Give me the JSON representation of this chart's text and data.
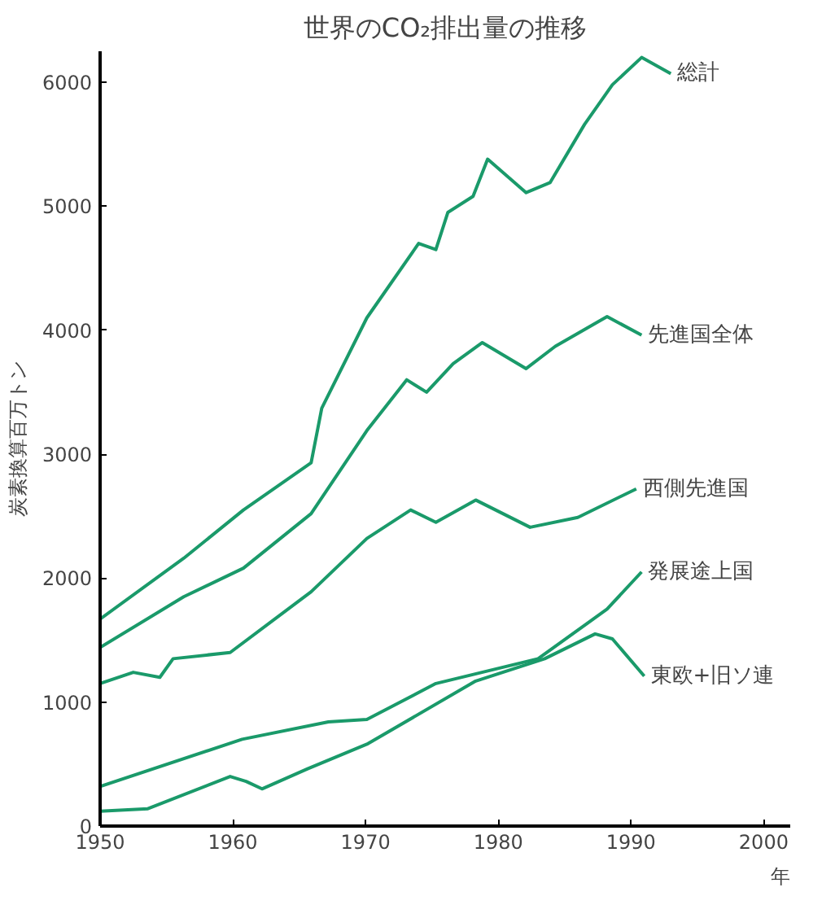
{
  "chart_data": {
    "type": "line",
    "title": "世界のCO₂排出量の推移",
    "xlabel": "年",
    "ylabel": "炭素換算百万トン",
    "xlim": [
      1950,
      2002
    ],
    "ylim": [
      0,
      6250
    ],
    "xticks": [
      1950,
      1960,
      1970,
      1980,
      1990,
      2000
    ],
    "yticks": [
      0,
      1000,
      2000,
      3000,
      4000,
      5000,
      6000
    ],
    "grid": false,
    "marker": "none",
    "line_style": "solid",
    "series": [
      {
        "name": "総計",
        "color": "#1a9a6a",
        "x": [
          1950,
          1956.3,
          1960.8,
          1965.9,
          1966.7,
          1970.1,
          1974,
          1975.3,
          1976.2,
          1978.1,
          1979.2,
          1982.1,
          1983.9,
          1986.5,
          1988.6,
          1990.8,
          1993
        ],
        "values": [
          1670,
          2160,
          2550,
          2930,
          3370,
          4100,
          4700,
          4650,
          4950,
          5080,
          5380,
          5110,
          5190,
          5660,
          5980,
          6200,
          6070
        ]
      },
      {
        "name": "先進国全体",
        "color": "#1a9a6a",
        "x": [
          1950,
          1956.3,
          1960.8,
          1965.9,
          1970.1,
          1973.1,
          1974.6,
          1976.6,
          1978.8,
          1982.1,
          1984.3,
          1988.2,
          1990.8
        ],
        "values": [
          1440,
          1850,
          2080,
          2520,
          3190,
          3600,
          3500,
          3730,
          3900,
          3690,
          3870,
          4110,
          3960
        ]
      },
      {
        "name": "西側先進国",
        "color": "#1a9a6a",
        "x": [
          1950,
          1952.5,
          1954.5,
          1955.5,
          1959.8,
          1965.9,
          1970.1,
          1973.4,
          1975.3,
          1978.3,
          1982.4,
          1986,
          1990.4
        ],
        "values": [
          1150,
          1240,
          1200,
          1350,
          1400,
          1890,
          2320,
          2550,
          2450,
          2630,
          2410,
          2490,
          2720
        ]
      },
      {
        "name": "発展途上国",
        "color": "#1a9a6a",
        "x": [
          1950,
          1960.7,
          1967.2,
          1970.1,
          1975.3,
          1983,
          1988.2,
          1990.8
        ],
        "values": [
          320,
          700,
          840,
          860,
          1150,
          1350,
          1750,
          2050
        ]
      },
      {
        "name": "東欧+旧ソ連",
        "color": "#1a9a6a",
        "x": [
          1950,
          1953.6,
          1959.8,
          1961,
          1962.2,
          1965.6,
          1970.1,
          1978.3,
          1983.5,
          1987.3,
          1988.6,
          1991
        ],
        "values": [
          120,
          140,
          400,
          360,
          300,
          460,
          660,
          1170,
          1350,
          1550,
          1510,
          1210
        ]
      }
    ]
  }
}
